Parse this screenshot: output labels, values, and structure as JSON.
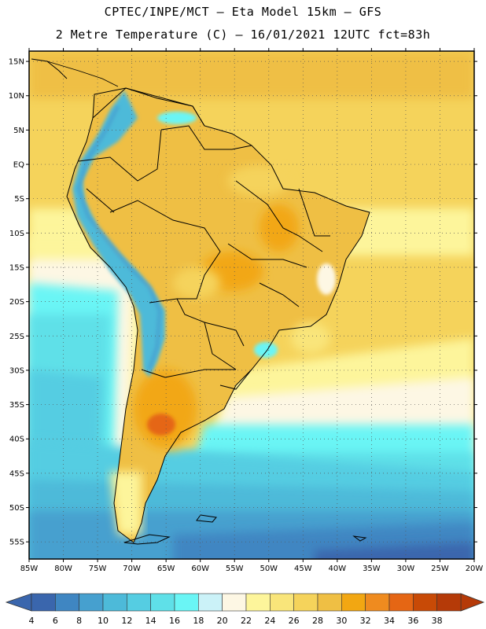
{
  "header": {
    "line1": "CPTEC/INPE/MCT –  Eta Model 15km – GFS",
    "line2": "2 Metre Temperature (C) – 16/01/2021 12UTC fct=83h"
  },
  "map": {
    "lat_labels": [
      "15N",
      "10N",
      "5N",
      "EQ",
      "5S",
      "10S",
      "15S",
      "20S",
      "25S",
      "30S",
      "35S",
      "40S",
      "45S",
      "50S",
      "55S"
    ],
    "lat_values": [
      15,
      10,
      5,
      0,
      -5,
      -10,
      -15,
      -20,
      -25,
      -30,
      -35,
      -40,
      -45,
      -50,
      -55
    ],
    "lon_labels": [
      "85W",
      "80W",
      "75W",
      "70W",
      "65W",
      "60W",
      "55W",
      "50W",
      "45W",
      "40W",
      "35W",
      "30W",
      "25W",
      "20W"
    ],
    "lon_values": [
      -85,
      -80,
      -75,
      -70,
      -65,
      -60,
      -55,
      -50,
      -45,
      -40,
      -35,
      -30,
      -25,
      -20
    ],
    "extent": {
      "lon_min": -85,
      "lon_max": -20,
      "lat_min": -57.5,
      "lat_max": 16.5
    }
  },
  "colorbar": {
    "labels": [
      "4",
      "6",
      "8",
      "10",
      "12",
      "14",
      "16",
      "18",
      "20",
      "22",
      "24",
      "26",
      "28",
      "30",
      "32",
      "34",
      "36",
      "38"
    ],
    "colors": [
      "#3a66ad",
      "#3f86c2",
      "#46a0cf",
      "#4dbad9",
      "#55cde2",
      "#5fe0e8",
      "#6af5f5",
      "#cbf2f8",
      "#fdf7e4",
      "#fdf59b",
      "#f9e57a",
      "#f5d35b",
      "#efbf44",
      "#f2a712",
      "#ef8b1f",
      "#e56614",
      "#c84a06",
      "#b53a08"
    ],
    "left_arrow_color": "#3a66ad",
    "right_arrow_color": "#b53a08"
  }
}
